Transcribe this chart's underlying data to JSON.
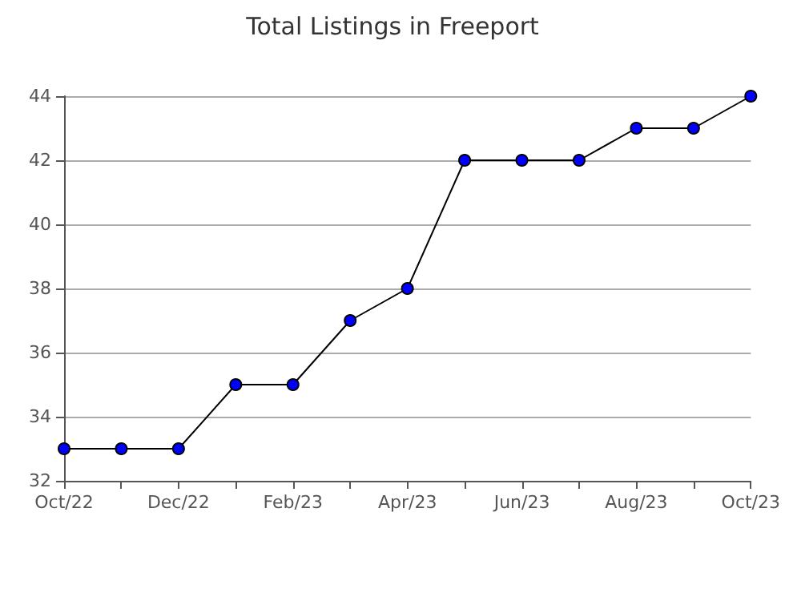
{
  "chart_data": {
    "type": "line",
    "title": "Total Listings in Freeport",
    "categories": [
      "Oct/22",
      null,
      "Dec/22",
      null,
      "Feb/23",
      null,
      "Apr/23",
      null,
      "Jun/23",
      null,
      "Aug/23",
      null,
      "Oct/23"
    ],
    "series": [
      {
        "color": "#0000ff",
        "values": [
          33,
          33,
          33,
          35,
          35,
          37,
          38,
          42,
          42,
          42,
          43,
          43,
          44
        ]
      }
    ],
    "ylim": [
      32,
      44
    ],
    "yticks": [
      32,
      34,
      36,
      38,
      40,
      42,
      44
    ],
    "grid": "y",
    "marker": "circle",
    "line_style": "solid"
  }
}
